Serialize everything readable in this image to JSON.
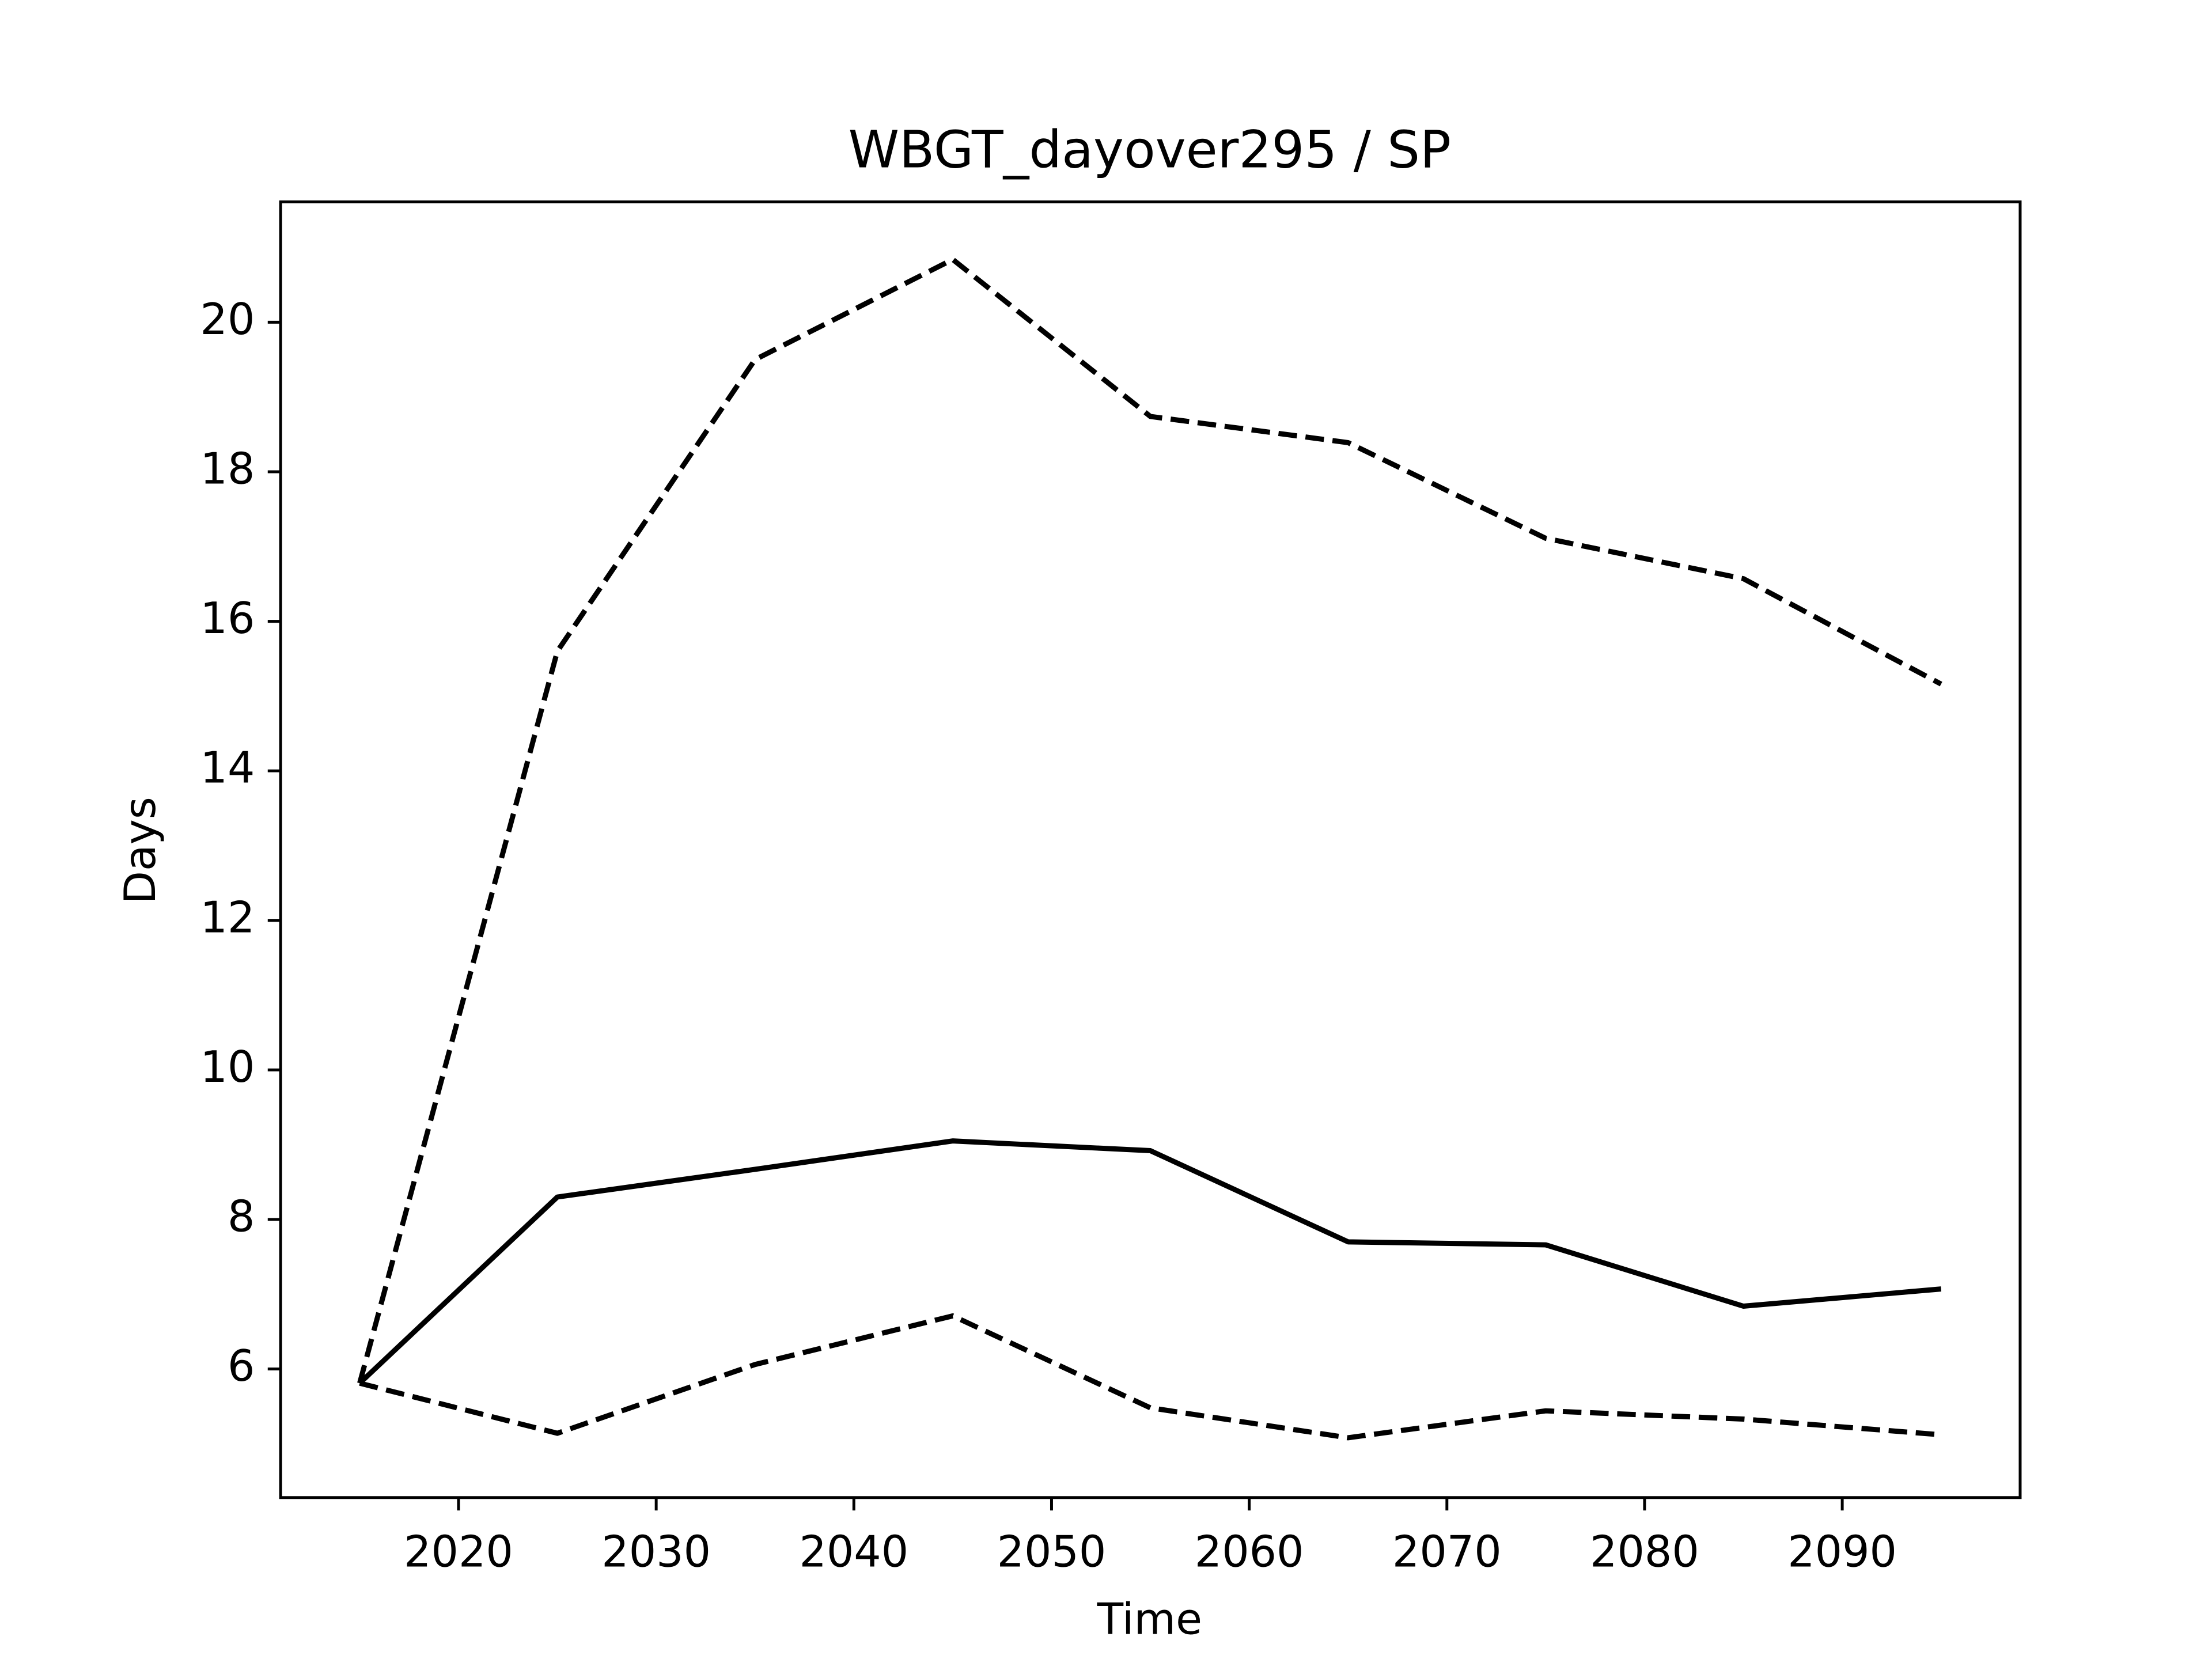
{
  "chart_data": {
    "type": "line",
    "title": "WBGT_dayover295 / SP",
    "xlabel": "Time",
    "ylabel": "Days",
    "x": [
      2015,
      2025,
      2035,
      2045,
      2055,
      2065,
      2075,
      2085,
      2095
    ],
    "series": [
      {
        "color": "#000000",
        "linestyle": "solid",
        "values": [
          5.81,
          8.3,
          8.67,
          9.05,
          8.92,
          7.7,
          7.66,
          6.84,
          7.07
        ]
      },
      {
        "color": "#000000",
        "linestyle": "dashed",
        "values": [
          5.81,
          15.6,
          19.5,
          20.84,
          18.74,
          18.39,
          17.11,
          16.57,
          15.16
        ]
      },
      {
        "color": "#000000",
        "linestyle": "dashed",
        "values": [
          5.81,
          5.14,
          6.06,
          6.71,
          5.48,
          5.08,
          5.44,
          5.33,
          5.12
        ]
      }
    ],
    "xlim": [
      2011,
      2099
    ],
    "xticks": [
      2020,
      2030,
      2040,
      2050,
      2060,
      2070,
      2080,
      2090
    ],
    "ylim": [
      4.28,
      21.61
    ],
    "yticks": [
      6,
      8,
      10,
      12,
      14,
      16,
      18,
      20
    ],
    "grid": false
  }
}
